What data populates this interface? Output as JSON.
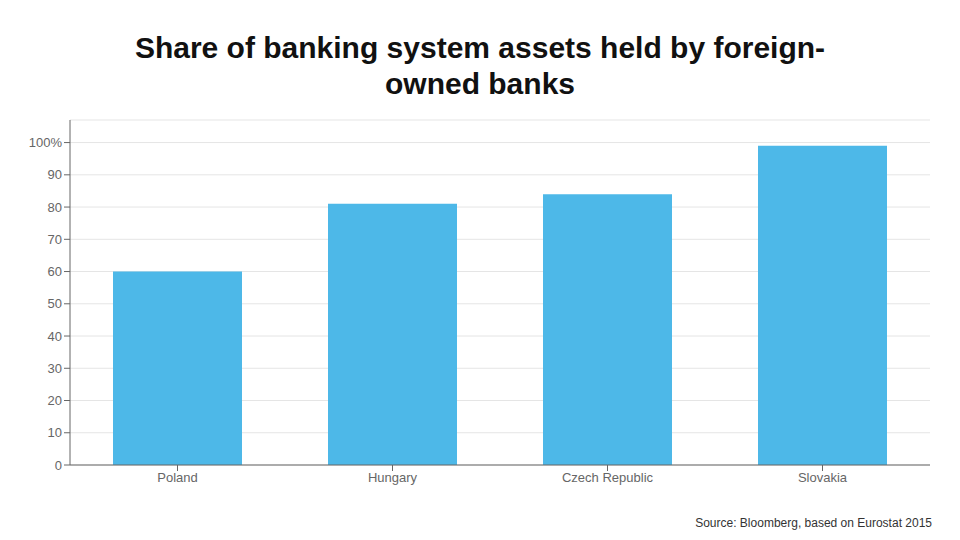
{
  "chart_data": {
    "type": "bar",
    "title": "Share of banking system assets held by foreign-\nowned banks",
    "categories": [
      "Poland",
      "Hungary",
      "Czech Republic",
      "Slovakia"
    ],
    "values": [
      60,
      81,
      84,
      99
    ],
    "color": "#4DB8E8",
    "ylim": [
      0,
      107
    ],
    "yticks": [
      0,
      10,
      20,
      30,
      40,
      50,
      60,
      70,
      80,
      90,
      {
        "value": 100,
        "label": "100%"
      }
    ],
    "grid": true,
    "source": "Source: Bloomberg, based on Eurostat 2015"
  }
}
